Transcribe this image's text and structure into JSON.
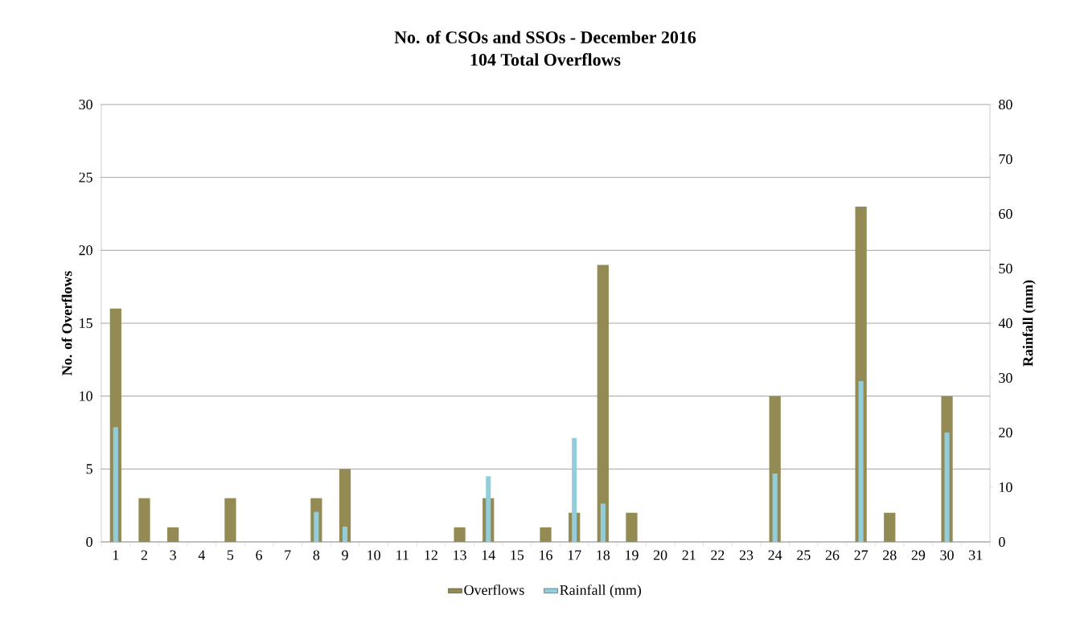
{
  "chart_data": {
    "type": "bar",
    "title": "No. of CSOs and SSOs - December 2016",
    "subtitle": "104 Total Overflows",
    "ylabel": "No. of Overflows",
    "y2label": "Rainfall (mm)",
    "categories": [
      "1",
      "2",
      "3",
      "4",
      "5",
      "6",
      "7",
      "8",
      "9",
      "10",
      "11",
      "12",
      "13",
      "14",
      "15",
      "16",
      "17",
      "18",
      "19",
      "20",
      "21",
      "22",
      "23",
      "24",
      "25",
      "26",
      "27",
      "28",
      "29",
      "30",
      "31"
    ],
    "series": [
      {
        "name": "Overflows",
        "color": "#948a54",
        "values": [
          16,
          3,
          1,
          0,
          3,
          0,
          0,
          3,
          5,
          0,
          0,
          0,
          1,
          3,
          0,
          1,
          2,
          19,
          2,
          0,
          0,
          0,
          0,
          10,
          0,
          0,
          23,
          2,
          0,
          10,
          0
        ]
      },
      {
        "name": "Rainfall (mm)",
        "color": "#92cddc",
        "axis": "y2",
        "values": [
          21,
          0,
          0,
          0,
          0,
          0,
          0,
          5.5,
          2.8,
          0,
          0,
          0,
          0,
          12,
          0,
          0,
          19,
          7,
          0,
          0,
          0,
          0,
          0,
          12.5,
          0,
          0,
          29.4,
          0,
          0,
          20,
          0
        ]
      }
    ],
    "ylim": [
      0,
      30
    ],
    "yticks": [
      0,
      5,
      10,
      15,
      20,
      25,
      30
    ],
    "y2lim": [
      0,
      80
    ],
    "y2ticks": [
      0,
      10,
      20,
      30,
      40,
      50,
      60,
      70,
      80
    ],
    "grid": "y",
    "legend": "bottom"
  }
}
